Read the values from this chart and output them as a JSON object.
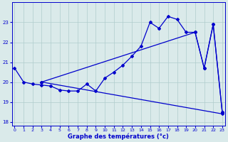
{
  "bg_color": "#daeaea",
  "line_color": "#0000cc",
  "grid_color": "#b0cccc",
  "xlabel": "Graphe des températures (°c)",
  "xlabel_color": "#0000cc",
  "tick_color": "#0000cc",
  "ylim": [
    17.8,
    24.0
  ],
  "xlim": [
    -0.3,
    23.3
  ],
  "yticks": [
    18,
    19,
    20,
    21,
    22,
    23
  ],
  "xticks": [
    0,
    1,
    2,
    3,
    4,
    5,
    6,
    7,
    8,
    9,
    10,
    11,
    12,
    13,
    14,
    15,
    16,
    17,
    18,
    19,
    20,
    21,
    22,
    23
  ],
  "series1_x": [
    0,
    1,
    2,
    3,
    4,
    5,
    6,
    7,
    8,
    9,
    10,
    11,
    12,
    13,
    14,
    15,
    16,
    17,
    18,
    19,
    20,
    21,
    22,
    23
  ],
  "series1_y": [
    20.7,
    20.0,
    19.9,
    19.85,
    19.8,
    19.6,
    19.55,
    19.55,
    19.9,
    19.55,
    20.2,
    20.5,
    20.85,
    21.3,
    21.8,
    23.0,
    22.7,
    23.3,
    23.15,
    22.5,
    22.5,
    20.7,
    22.9,
    18.5
  ],
  "series2_x": [
    3,
    20,
    21,
    22,
    23
  ],
  "series2_y": [
    20.0,
    22.5,
    20.7,
    22.9,
    18.5
  ],
  "series3_x": [
    3,
    23
  ],
  "series3_y": [
    20.0,
    18.4
  ]
}
